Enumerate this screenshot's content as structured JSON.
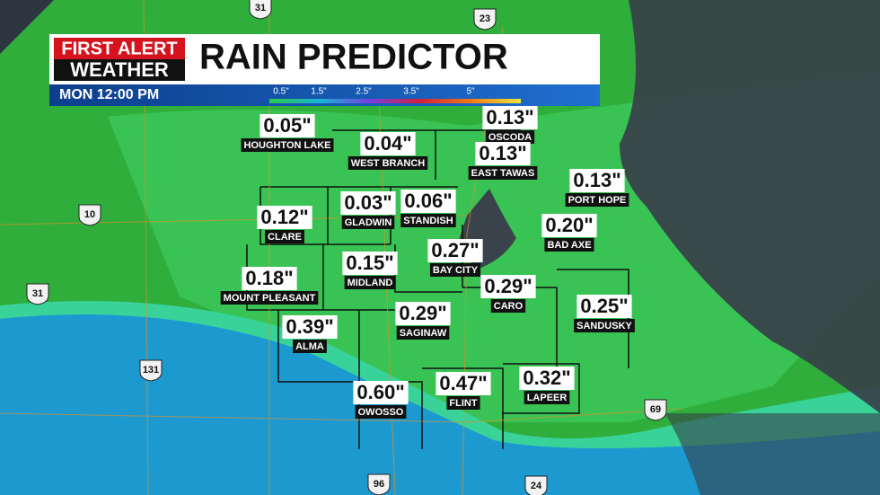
{
  "header": {
    "logo_line1": "FIRST ALERT",
    "logo_line2": "WEATHER",
    "title": "RAIN PREDICTOR",
    "time": "MON 12:00 PM"
  },
  "legend": {
    "labels": [
      "0.5\"",
      "1.5\"",
      "2.5\"",
      "3.5\"",
      "5\""
    ]
  },
  "locations": [
    {
      "name": "HOUGHTON LAKE",
      "amount": "0.05\""
    },
    {
      "name": "WEST BRANCH",
      "amount": "0.04\""
    },
    {
      "name": "OSCODA",
      "amount": "0.13\""
    },
    {
      "name": "EAST TAWAS",
      "amount": "0.13\""
    },
    {
      "name": "PORT HOPE",
      "amount": "0.13\""
    },
    {
      "name": "GLADWIN",
      "amount": "0.03\""
    },
    {
      "name": "STANDISH",
      "amount": "0.06\""
    },
    {
      "name": "CLARE",
      "amount": "0.12\""
    },
    {
      "name": "BAD AXE",
      "amount": "0.20\""
    },
    {
      "name": "BAY CITY",
      "amount": "0.27\""
    },
    {
      "name": "MOUNT PLEASANT",
      "amount": "0.18\""
    },
    {
      "name": "MIDLAND",
      "amount": "0.15\""
    },
    {
      "name": "CARO",
      "amount": "0.29\""
    },
    {
      "name": "SANDUSKY",
      "amount": "0.25\""
    },
    {
      "name": "ALMA",
      "amount": "0.39\""
    },
    {
      "name": "SAGINAW",
      "amount": "0.29\""
    },
    {
      "name": "OWOSSO",
      "amount": "0.60\""
    },
    {
      "name": "FLINT",
      "amount": "0.47\""
    },
    {
      "name": "LAPEER",
      "amount": "0.32\""
    }
  ],
  "highways": [
    "31",
    "23",
    "10",
    "31",
    "131",
    "69",
    "96",
    "24"
  ]
}
